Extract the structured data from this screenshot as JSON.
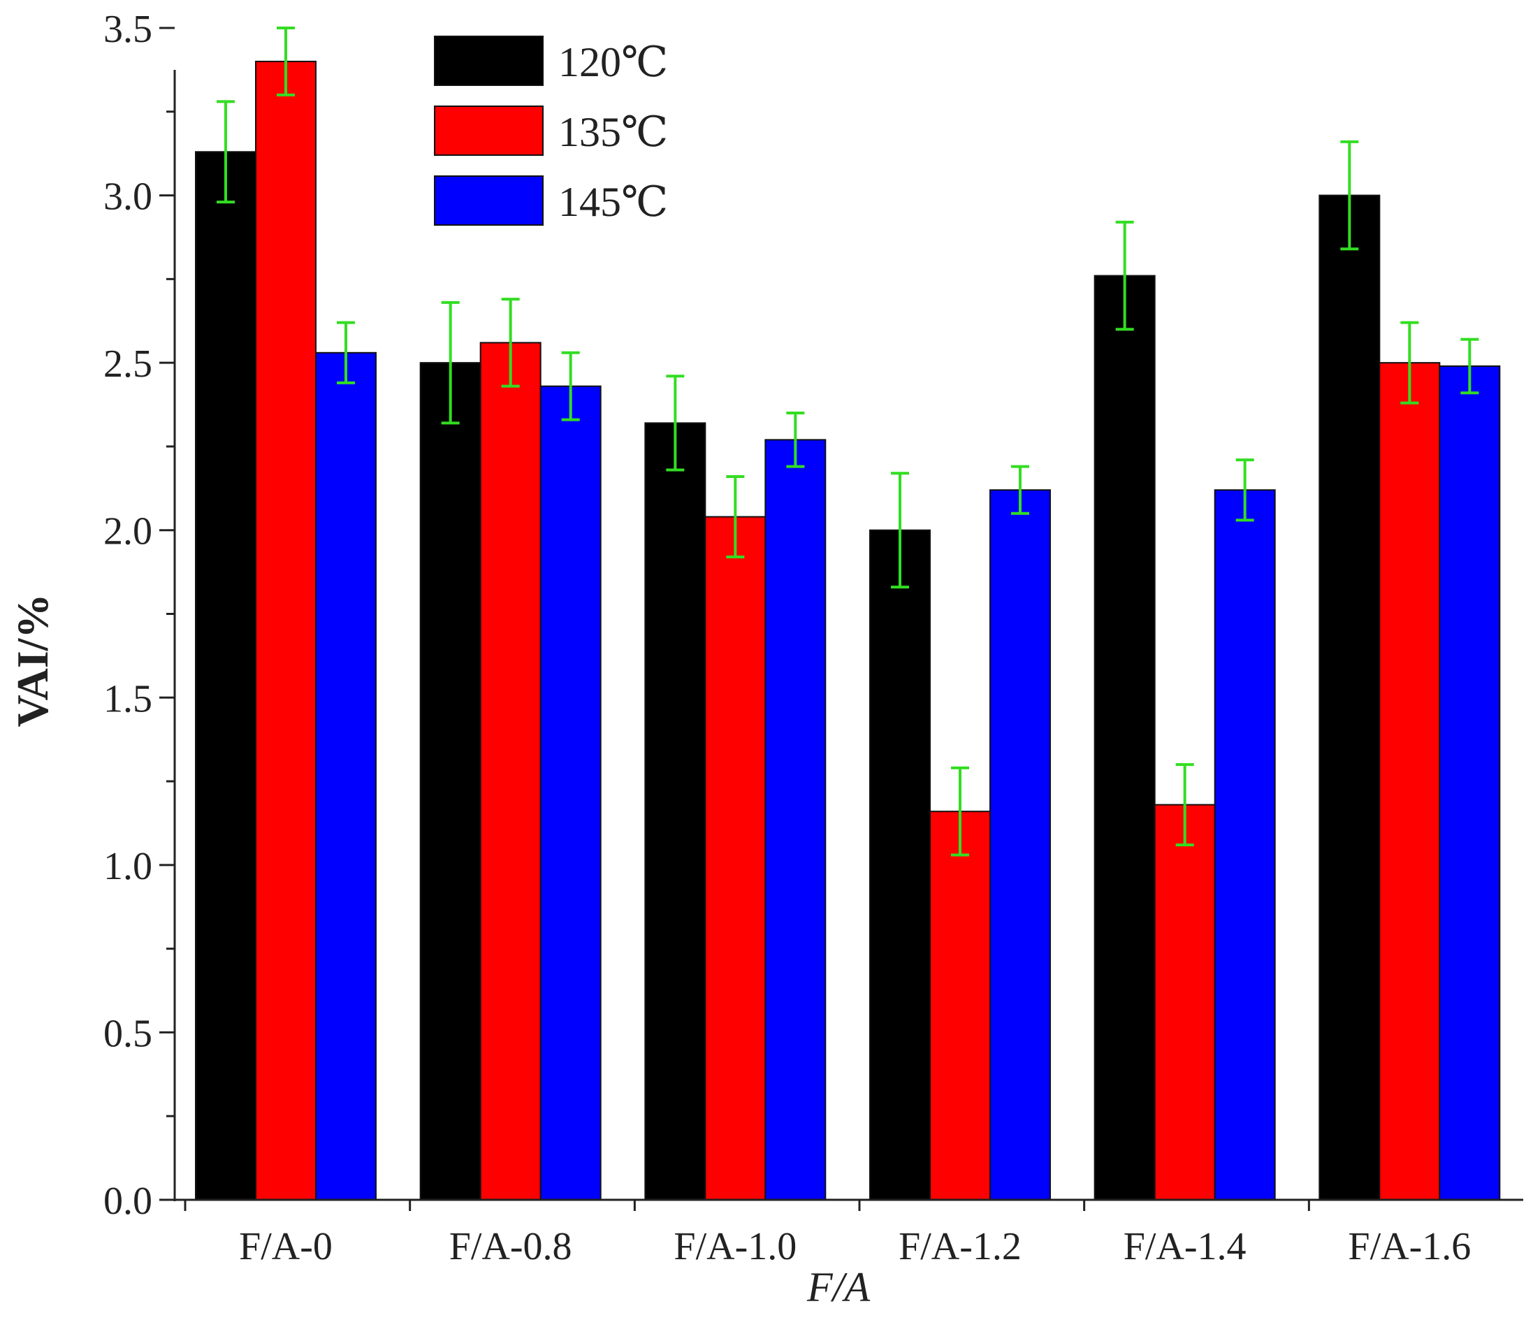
{
  "chart_data": {
    "type": "bar",
    "title": "",
    "xlabel": "F/A",
    "ylabel": "VAI/%",
    "ylim": [
      0,
      3.5
    ],
    "yticks": [
      0.0,
      0.5,
      1.0,
      1.5,
      2.0,
      2.5,
      3.0,
      3.5
    ],
    "ytick_labels": [
      "0.0",
      "0.5",
      "1.0",
      "1.5",
      "2.0",
      "2.5",
      "3.0",
      "3.5"
    ],
    "categories": [
      "F/A-0",
      "F/A-0.8",
      "F/A-1.0",
      "F/A-1.2",
      "F/A-1.4",
      "F/A-1.6"
    ],
    "legend_position": "top-left",
    "grid": false,
    "error_bar_color": "#33dd22",
    "series": [
      {
        "name": "120℃",
        "color": "#000000",
        "values": [
          3.13,
          2.5,
          2.32,
          2.0,
          2.76,
          3.0
        ],
        "errors": [
          0.15,
          0.18,
          0.14,
          0.17,
          0.16,
          0.16
        ]
      },
      {
        "name": "135℃",
        "color": "#ff0000",
        "values": [
          3.4,
          2.56,
          2.04,
          1.16,
          1.18,
          2.5
        ],
        "errors": [
          0.1,
          0.13,
          0.12,
          0.13,
          0.12,
          0.12
        ]
      },
      {
        "name": "145℃",
        "color": "#0000ff",
        "values": [
          2.53,
          2.43,
          2.27,
          2.12,
          2.12,
          2.49
        ],
        "errors": [
          0.09,
          0.1,
          0.08,
          0.07,
          0.09,
          0.08
        ]
      }
    ]
  }
}
